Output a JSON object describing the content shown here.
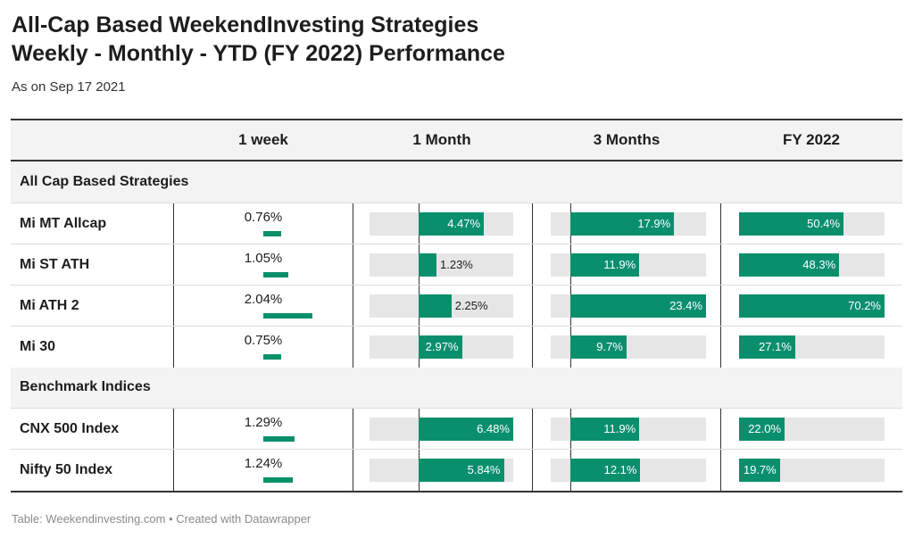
{
  "title_line1": "All-Cap Based WeekendInvesting Strategies",
  "title_line2": "Weekly - Monthly - YTD (FY 2022)  Performance",
  "subtitle": "As on Sep 17 2021",
  "footer": "Table: Weekendinvesting.com • Created with Datawrapper",
  "colors": {
    "bar": "#0a8f6d",
    "track": "#e6e6e6",
    "header_bg": "#f3f3f3"
  },
  "chart_data": {
    "type": "table",
    "columns": [
      "",
      "1 week",
      "1 Month",
      "3 Months",
      "FY 2022"
    ],
    "groups": [
      {
        "name": "All Cap Based Strategies",
        "rows": [
          {
            "name": "Mi MT Allcap",
            "week": 0.76,
            "week_label": "0.76%",
            "month": 4.47,
            "month_label": "4.47%",
            "three_months": 17.9,
            "three_months_label": "17.9%",
            "fy": 50.4,
            "fy_label": "50.4%"
          },
          {
            "name": "Mi ST ATH",
            "week": 1.05,
            "week_label": "1.05%",
            "month": 1.23,
            "month_label": "1.23%",
            "three_months": 11.9,
            "three_months_label": "11.9%",
            "fy": 48.3,
            "fy_label": "48.3%"
          },
          {
            "name": "Mi ATH 2",
            "week": 2.04,
            "week_label": "2.04%",
            "month": 2.25,
            "month_label": "2.25%",
            "three_months": 23.4,
            "three_months_label": "23.4%",
            "fy": 70.2,
            "fy_label": "70.2%"
          },
          {
            "name": "Mi 30",
            "week": 0.75,
            "week_label": "0.75%",
            "month": 2.97,
            "month_label": "2.97%",
            "three_months": 9.7,
            "three_months_label": "9.7%",
            "fy": 27.1,
            "fy_label": "27.1%"
          }
        ]
      },
      {
        "name": "Benchmark Indices",
        "rows": [
          {
            "name": "CNX 500 Index",
            "week": 1.29,
            "week_label": "1.29%",
            "month": 6.48,
            "month_label": "6.48%",
            "three_months": 11.9,
            "three_months_label": "11.9%",
            "fy": 22.0,
            "fy_label": "22.0%"
          },
          {
            "name": "Nifty 50 Index",
            "week": 1.24,
            "week_label": "1.24%",
            "month": 5.84,
            "month_label": "5.84%",
            "three_months": 12.1,
            "three_months_label": "12.1%",
            "fy": 19.7,
            "fy_label": "19.7%"
          }
        ]
      }
    ],
    "ranges": {
      "week": [
        0,
        2.04
      ],
      "month": [
        -3.35,
        6.48
      ],
      "three_months": [
        -3.35,
        23.4
      ],
      "fy": [
        0,
        70.2
      ]
    }
  }
}
